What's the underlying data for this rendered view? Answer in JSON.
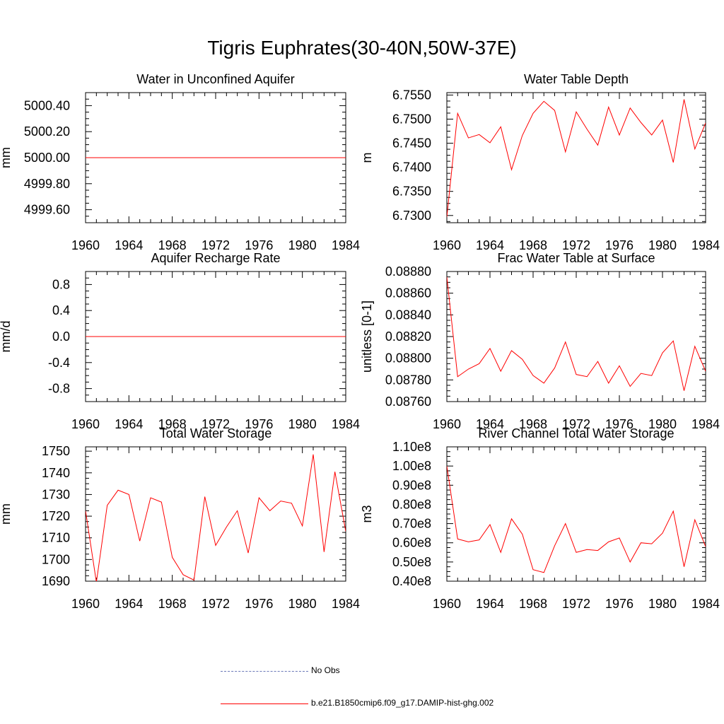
{
  "title": "Tigris Euphrates(30-40N,50W-37E)",
  "colors": {
    "model": "#ff0000",
    "obs": "#6a78b8"
  },
  "legend": {
    "obs_label": "No Obs",
    "model_label": "b.e21.B1850cmip6.f09_g17.DAMIP-hist-ghg.002"
  },
  "chart_data": [
    {
      "type": "line",
      "title": "Water in Unconfined Aquifer",
      "ylabel": "mm",
      "xlim": [
        1960,
        1984
      ],
      "ylim": [
        4999.5,
        5000.5
      ],
      "xticks": [
        1960,
        1964,
        1968,
        1972,
        1976,
        1980,
        1984
      ],
      "yticks": [
        4999.6,
        4999.8,
        5000.0,
        5000.2,
        5000.4
      ],
      "ytick_labels": [
        "4999.60",
        "4999.80",
        "5000.00",
        "5000.20",
        "5000.40"
      ],
      "series": [
        {
          "x": [
            1960,
            1961,
            1962,
            1963,
            1964,
            1965,
            1966,
            1967,
            1968,
            1969,
            1970,
            1971,
            1972,
            1973,
            1974,
            1975,
            1976,
            1977,
            1978,
            1979,
            1980,
            1981,
            1982,
            1983,
            1984
          ],
          "values": [
            5000,
            5000,
            5000,
            5000,
            5000,
            5000,
            5000,
            5000,
            5000,
            5000,
            5000,
            5000,
            5000,
            5000,
            5000,
            5000,
            5000,
            5000,
            5000,
            5000,
            5000,
            5000,
            5000,
            5000,
            5000
          ]
        }
      ]
    },
    {
      "type": "line",
      "title": "Water Table Depth",
      "ylabel": "m",
      "xlim": [
        1960,
        1984
      ],
      "ylim": [
        6.7285,
        6.7555
      ],
      "xticks": [
        1960,
        1964,
        1968,
        1972,
        1976,
        1980,
        1984
      ],
      "yticks": [
        6.73,
        6.735,
        6.74,
        6.745,
        6.75,
        6.755
      ],
      "ytick_labels": [
        "6.7300",
        "6.7350",
        "6.7400",
        "6.7450",
        "6.7500",
        "6.7550"
      ],
      "series": [
        {
          "x": [
            1960,
            1961,
            1962,
            1963,
            1964,
            1965,
            1966,
            1967,
            1968,
            1969,
            1970,
            1971,
            1972,
            1973,
            1974,
            1975,
            1976,
            1977,
            1978,
            1979,
            1980,
            1981,
            1982,
            1983,
            1984
          ],
          "values": [
            6.7297,
            6.7512,
            6.7461,
            6.7468,
            6.7451,
            6.7484,
            6.7395,
            6.7466,
            6.7512,
            6.7537,
            6.7518,
            6.7432,
            6.7515,
            6.7479,
            6.7446,
            6.7525,
            6.7467,
            6.7523,
            6.7493,
            6.7467,
            6.7498,
            6.741,
            6.7541,
            6.7438,
            6.7492
          ]
        }
      ]
    },
    {
      "type": "line",
      "title": "Aquifer Recharge Rate",
      "ylabel": "mm/d",
      "xlim": [
        1960,
        1984
      ],
      "ylim": [
        -1.0,
        1.0
      ],
      "xticks": [
        1960,
        1964,
        1968,
        1972,
        1976,
        1980,
        1984
      ],
      "yticks": [
        -0.8,
        -0.4,
        0.0,
        0.4,
        0.8
      ],
      "ytick_labels": [
        "-0.8",
        "-0.4",
        "0.0",
        "0.4",
        "0.8"
      ],
      "series": [
        {
          "x": [
            1960,
            1961,
            1962,
            1963,
            1964,
            1965,
            1966,
            1967,
            1968,
            1969,
            1970,
            1971,
            1972,
            1973,
            1974,
            1975,
            1976,
            1977,
            1978,
            1979,
            1980,
            1981,
            1982,
            1983,
            1984
          ],
          "values": [
            0,
            0,
            0,
            0,
            0,
            0,
            0,
            0,
            0,
            0,
            0,
            0,
            0,
            0,
            0,
            0,
            0,
            0,
            0,
            0,
            0,
            0,
            0,
            0,
            0
          ]
        }
      ]
    },
    {
      "type": "line",
      "title": "Frac Water Table at Surface",
      "ylabel": "unitless [0-1]",
      "xlim": [
        1960,
        1984
      ],
      "ylim": [
        0.0876,
        0.0888
      ],
      "xticks": [
        1960,
        1964,
        1968,
        1972,
        1976,
        1980,
        1984
      ],
      "yticks": [
        0.0876,
        0.0878,
        0.088,
        0.0882,
        0.0884,
        0.0886,
        0.0888
      ],
      "ytick_labels": [
        "0.08760",
        "0.08780",
        "0.08800",
        "0.08820",
        "0.08840",
        "0.08860",
        "0.08880"
      ],
      "series": [
        {
          "x": [
            1960,
            1961,
            1962,
            1963,
            1964,
            1965,
            1966,
            1967,
            1968,
            1969,
            1970,
            1971,
            1972,
            1973,
            1974,
            1975,
            1976,
            1977,
            1978,
            1979,
            1980,
            1981,
            1982,
            1983,
            1984
          ],
          "values": [
            0.08875,
            0.08783,
            0.0879,
            0.08795,
            0.08809,
            0.08788,
            0.08807,
            0.08799,
            0.08784,
            0.08777,
            0.08791,
            0.08815,
            0.08785,
            0.08783,
            0.08797,
            0.08777,
            0.08793,
            0.08774,
            0.08786,
            0.08784,
            0.08805,
            0.08816,
            0.0877,
            0.08811,
            0.08788
          ]
        }
      ]
    },
    {
      "type": "line",
      "title": "Total Water Storage",
      "ylabel": "mm",
      "xlim": [
        1960,
        1984
      ],
      "ylim": [
        1690,
        1752
      ],
      "xticks": [
        1960,
        1964,
        1968,
        1972,
        1976,
        1980,
        1984
      ],
      "yticks": [
        1690,
        1700,
        1710,
        1720,
        1730,
        1740,
        1750
      ],
      "ytick_labels": [
        "1690",
        "1700",
        "1710",
        "1720",
        "1730",
        "1740",
        "1750"
      ],
      "series": [
        {
          "x": [
            1960,
            1961,
            1962,
            1963,
            1964,
            1965,
            1966,
            1967,
            1968,
            1969,
            1970,
            1971,
            1972,
            1973,
            1974,
            1975,
            1976,
            1977,
            1978,
            1979,
            1980,
            1981,
            1982,
            1983,
            1984
          ],
          "values": [
            1722.5,
            1689.5,
            1725,
            1732,
            1730,
            1708.5,
            1728.5,
            1726.5,
            1701,
            1693,
            1690.5,
            1729,
            1706.5,
            1715,
            1722.5,
            1703,
            1728.5,
            1722.5,
            1727,
            1726,
            1715.5,
            1748.5,
            1703.5,
            1740.5,
            1713
          ]
        }
      ]
    },
    {
      "type": "line",
      "title": "River Channel Total Water Storage",
      "ylabel": "m3",
      "xlim": [
        1960,
        1984
      ],
      "ylim": [
        40000000,
        110000000
      ],
      "xticks": [
        1960,
        1964,
        1968,
        1972,
        1976,
        1980,
        1984
      ],
      "yticks": [
        40000000,
        50000000,
        60000000,
        70000000,
        80000000,
        90000000,
        100000000,
        110000000
      ],
      "ytick_labels": [
        "0.40e8",
        "0.50e8",
        "0.60e8",
        "0.70e8",
        "0.80e8",
        "0.90e8",
        "1.00e8",
        "1.10e8"
      ],
      "series": [
        {
          "x": [
            1960,
            1961,
            1962,
            1963,
            1964,
            1965,
            1966,
            1967,
            1968,
            1969,
            1970,
            1971,
            1972,
            1973,
            1974,
            1975,
            1976,
            1977,
            1978,
            1979,
            1980,
            1981,
            1982,
            1983,
            1984
          ],
          "values": [
            100000000,
            62000000,
            60500000,
            61500000,
            69500000,
            55000000,
            72500000,
            64500000,
            46000000,
            44500000,
            58500000,
            70000000,
            55000000,
            56500000,
            56000000,
            60500000,
            62500000,
            50000000,
            60000000,
            59500000,
            65000000,
            76500000,
            47500000,
            72000000,
            58000000
          ]
        }
      ]
    }
  ]
}
